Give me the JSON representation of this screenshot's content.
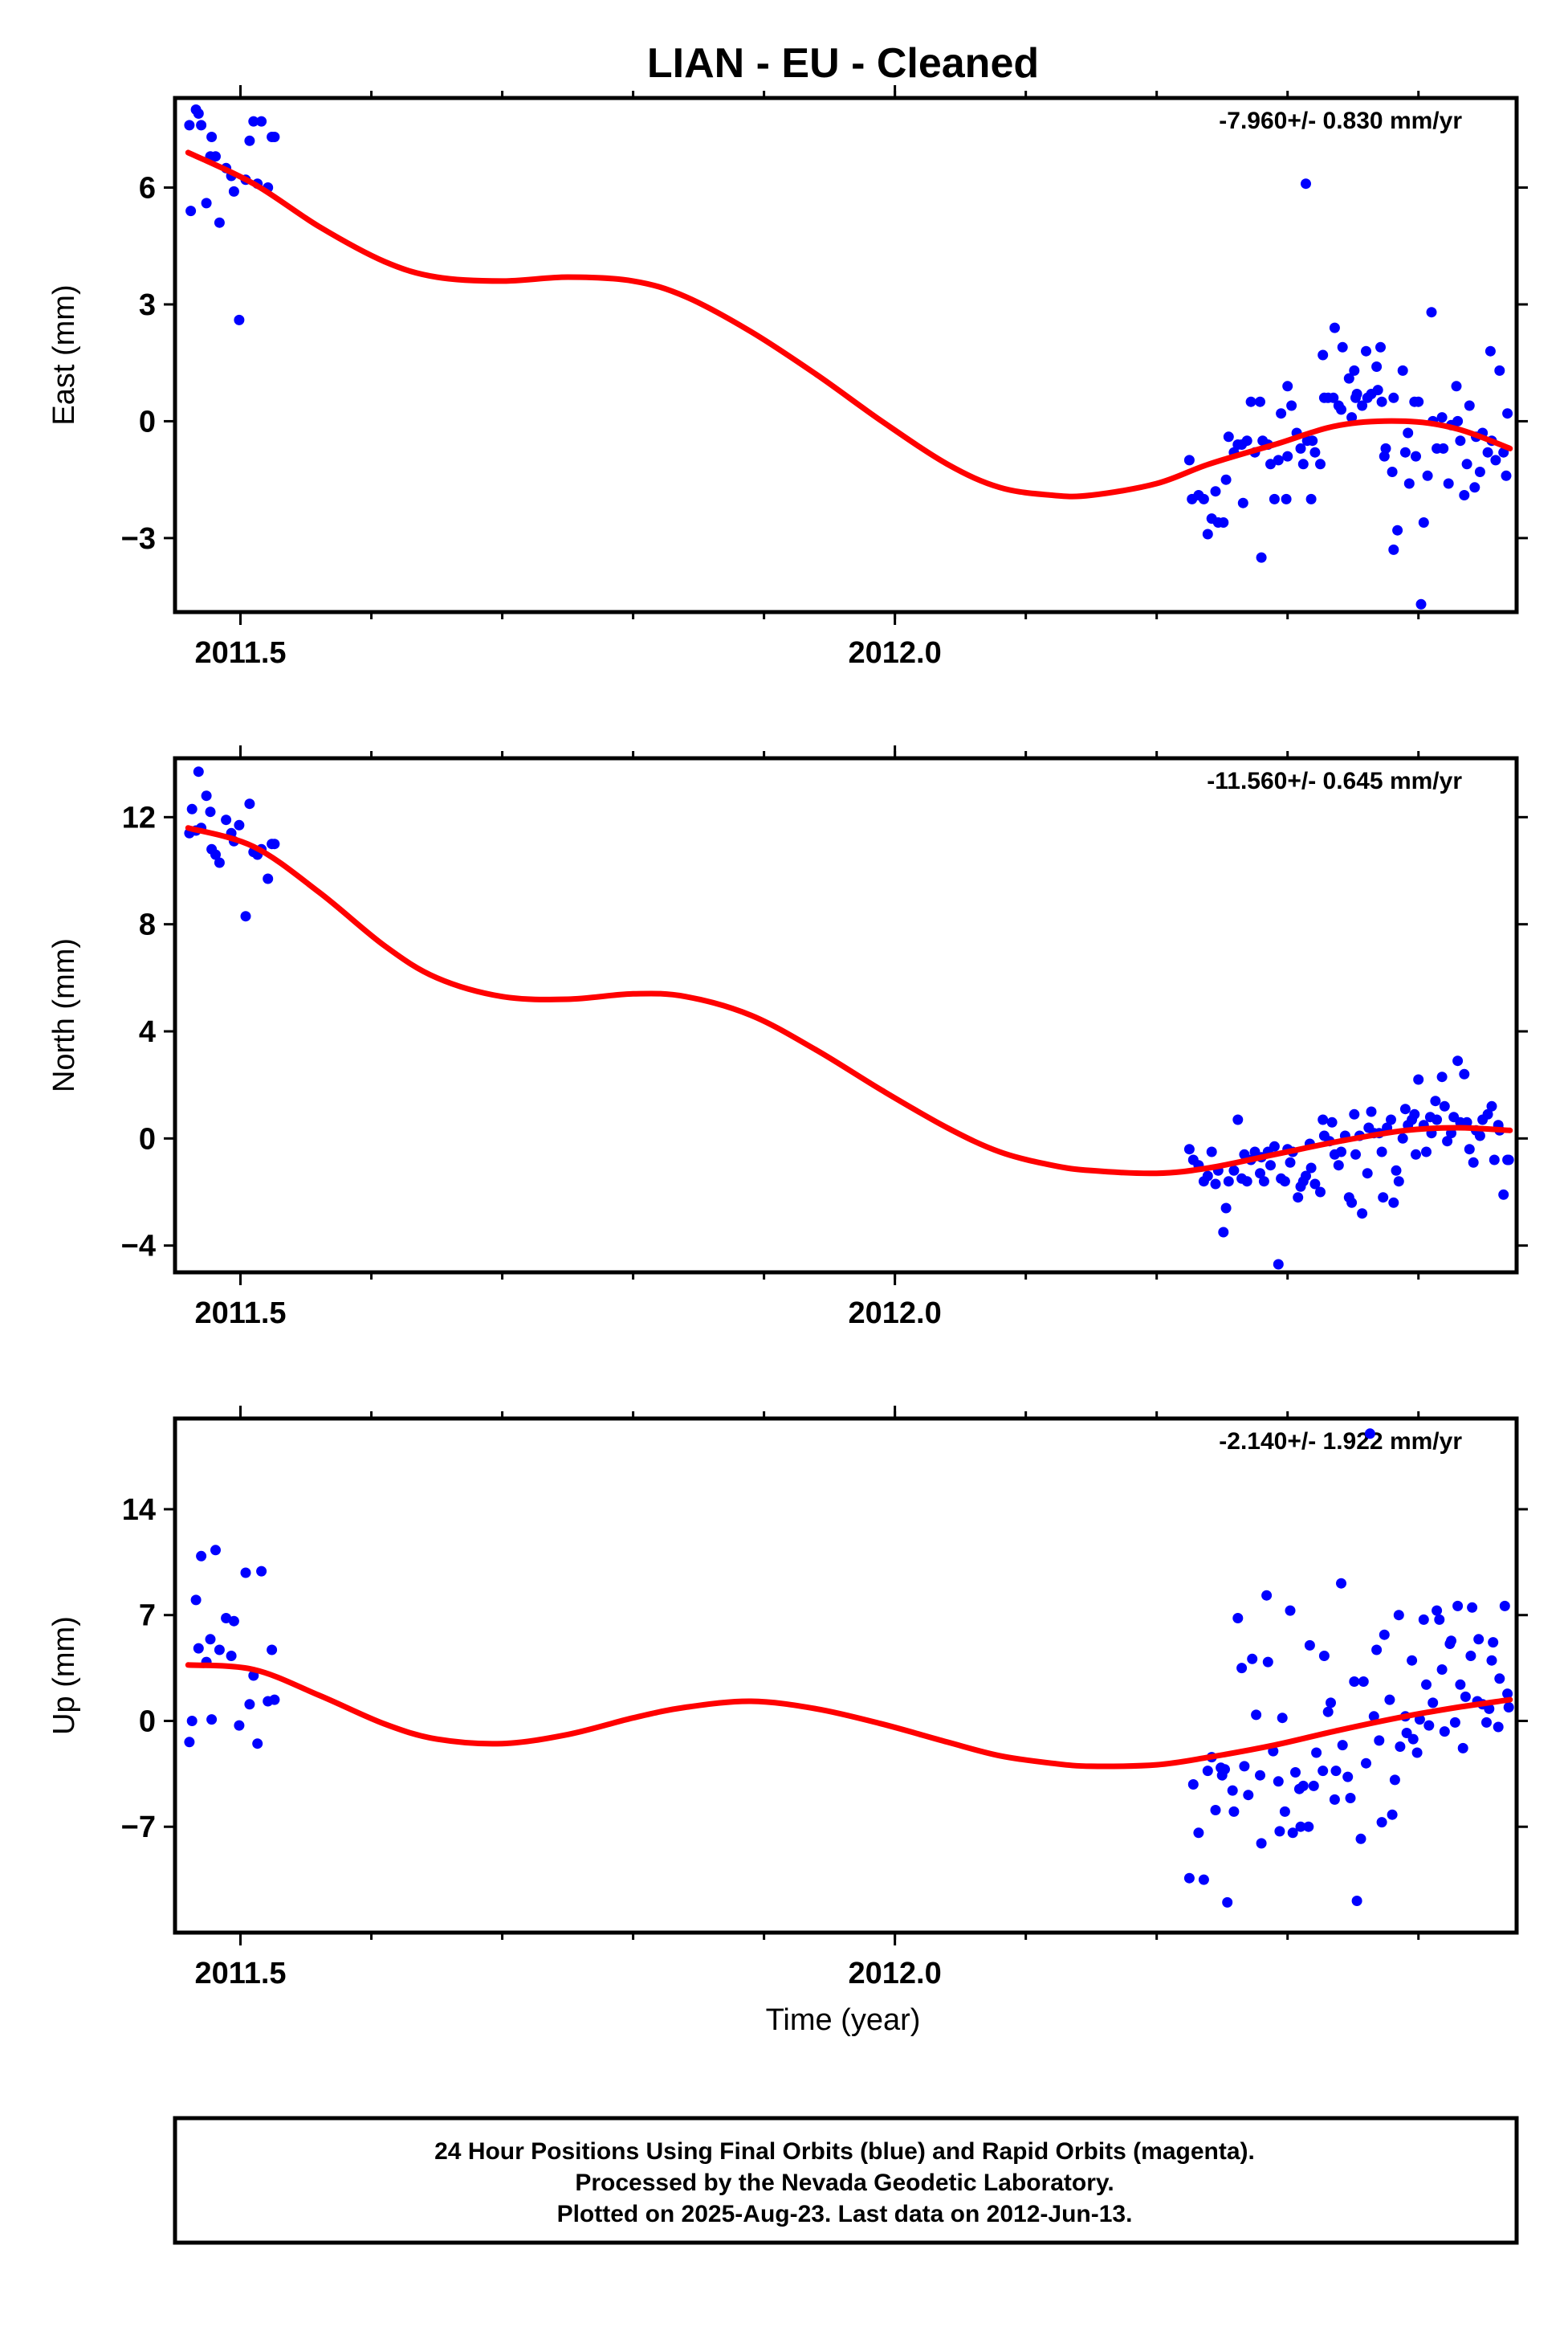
{
  "title": "LIAN  - EU - Cleaned",
  "x_axis_label": "Time (year)",
  "footer": {
    "line1": "24 Hour Positions Using Final Orbits (blue) and Rapid Orbits (magenta).",
    "line2": "Processed by the Nevada Geodetic Laboratory.",
    "line3": "Plotted on 2025-Aug-23. Last data on 2012-Jun-13."
  },
  "colors": {
    "points": "#0000ff",
    "fit": "#ff0000",
    "axes": "#000000"
  },
  "chart_data": [
    {
      "type": "scatter",
      "ylabel": "East (mm)",
      "rate_label": "-7.960+/- 0.830 mm/yr",
      "xlim": [
        2011.45,
        2012.475
      ],
      "ylim": [
        -4.9,
        8.3
      ],
      "x_ticks": [
        2011.5,
        2012.0
      ],
      "x_minor": 0.1,
      "y_ticks": [
        -3,
        0,
        3,
        6
      ],
      "grid": false,
      "series": [
        {
          "style": "points",
          "x": [
            2011.461,
            2011.462,
            2011.466,
            2011.468,
            2011.47,
            2011.474,
            2011.477,
            2011.478,
            2011.481,
            2011.484,
            2011.489,
            2011.493,
            2011.495,
            2011.499,
            2011.504,
            2011.507,
            2011.51,
            2011.513,
            2011.516,
            2011.521,
            2011.524,
            2011.526
          ],
          "y": [
            7.6,
            5.4,
            8.0,
            7.9,
            7.6,
            5.6,
            6.8,
            7.3,
            6.8,
            5.1,
            6.5,
            6.3,
            5.9,
            2.6,
            6.2,
            7.2,
            7.7,
            6.1,
            7.7,
            6.0,
            7.3,
            7.3
          ]
        },
        {
          "style": "points",
          "x": [
            2012.225,
            2012.227,
            2012.232,
            2012.236,
            2012.239,
            2012.242,
            2012.245,
            2012.247,
            2012.251,
            2012.253,
            2012.255,
            2012.259,
            2012.262,
            2012.265,
            2012.266,
            2012.269,
            2012.272,
            2012.275,
            2012.279,
            2012.28,
            2012.281,
            2012.285,
            2012.287,
            2012.29,
            2012.293,
            2012.295,
            2012.299,
            2012.3,
            2012.3,
            2012.303,
            2012.307,
            2012.31,
            2012.312,
            2012.314,
            2012.315,
            2012.318,
            2012.319,
            2012.321,
            2012.325,
            2012.327,
            2012.328,
            2012.331,
            2012.335,
            2012.336,
            2012.339,
            2012.341,
            2012.342,
            2012.347,
            2012.349,
            2012.351,
            2012.352,
            2012.353,
            2012.357,
            2012.36,
            2012.361,
            2012.364,
            2012.368,
            2012.369,
            2012.371,
            2012.372,
            2012.374,
            2012.375,
            2012.38,
            2012.381,
            2012.381,
            2012.384,
            2012.388,
            2012.39,
            2012.392,
            2012.393,
            2012.397,
            2012.398,
            2012.4,
            2012.402,
            2012.404,
            2012.407,
            2012.41,
            2012.411,
            2012.414,
            2012.418,
            2012.419,
            2012.423,
            2012.425,
            2012.429,
            2012.43,
            2012.432,
            2012.435,
            2012.437,
            2012.439,
            2012.443,
            2012.444,
            2012.447,
            2012.449,
            2012.453,
            2012.455,
            2012.456,
            2012.459,
            2012.462,
            2012.465,
            2012.467,
            2012.468
          ],
          "y": [
            -1.0,
            -2.0,
            -1.9,
            -2.0,
            -2.9,
            -2.5,
            -1.8,
            -2.6,
            -2.6,
            -1.5,
            -0.4,
            -0.8,
            -0.6,
            -0.6,
            -2.1,
            -0.5,
            0.5,
            -0.8,
            0.5,
            -3.5,
            -0.5,
            -0.6,
            -1.1,
            -2.0,
            -1.0,
            0.2,
            -2.0,
            -0.9,
            0.9,
            0.4,
            -0.3,
            -0.7,
            -1.1,
            6.1,
            -0.5,
            -2.0,
            -0.5,
            -0.8,
            -1.1,
            1.7,
            0.6,
            0.6,
            0.6,
            2.4,
            0.4,
            0.3,
            1.9,
            1.1,
            0.1,
            1.3,
            0.6,
            0.7,
            0.4,
            1.8,
            0.6,
            0.7,
            1.4,
            0.8,
            1.9,
            0.5,
            -0.9,
            -0.7,
            -1.3,
            0.6,
            -3.3,
            -2.8,
            1.3,
            -0.8,
            -0.3,
            -1.6,
            0.5,
            -0.9,
            0.5,
            -4.7,
            -2.6,
            -1.4,
            2.8,
            0.0,
            -0.7,
            0.1,
            -0.7,
            -1.6,
            -0.1,
            0.9,
            0.0,
            -0.5,
            -1.9,
            -1.1,
            0.4,
            -1.7,
            -0.4,
            -1.3,
            -0.3,
            -0.8,
            1.8,
            -0.5,
            -1.0,
            1.3,
            -0.8,
            -1.4,
            0.2
          ]
        },
        {
          "style": "line",
          "x": [
            2011.46,
            2011.51,
            2011.56,
            2011.61,
            2011.65,
            2011.7,
            2011.75,
            2011.8,
            2011.84,
            2011.89,
            2011.94,
            2011.99,
            2012.04,
            2012.08,
            2012.12,
            2012.15,
            2012.2,
            2012.24,
            2012.29,
            2012.34,
            2012.39,
            2012.43,
            2012.47
          ],
          "y": [
            6.9,
            6.1,
            5.0,
            4.1,
            3.7,
            3.6,
            3.7,
            3.6,
            3.2,
            2.3,
            1.2,
            0.0,
            -1.1,
            -1.7,
            -1.9,
            -1.9,
            -1.6,
            -1.1,
            -0.6,
            -0.1,
            0.0,
            -0.2,
            -0.7
          ]
        }
      ]
    },
    {
      "type": "scatter",
      "ylabel": "North (mm)",
      "rate_label": "-11.560+/- 0.645 mm/yr",
      "xlim": [
        2011.45,
        2012.475
      ],
      "ylim": [
        -5.0,
        14.2
      ],
      "x_ticks": [
        2011.5,
        2012.0
      ],
      "x_minor": 0.1,
      "y_ticks": [
        -4,
        0,
        4,
        8,
        12
      ],
      "grid": false,
      "series": [
        {
          "style": "points",
          "x": [
            2011.461,
            2011.463,
            2011.466,
            2011.468,
            2011.47,
            2011.474,
            2011.477,
            2011.478,
            2011.481,
            2011.484,
            2011.489,
            2011.493,
            2011.495,
            2011.499,
            2011.504,
            2011.507,
            2011.51,
            2011.513,
            2011.516,
            2011.521,
            2011.524,
            2011.526
          ],
          "y": [
            11.4,
            12.3,
            11.5,
            13.7,
            11.6,
            12.8,
            12.2,
            10.8,
            10.6,
            10.3,
            11.9,
            11.4,
            11.1,
            11.7,
            8.3,
            12.5,
            10.7,
            10.6,
            10.8,
            9.7,
            11.0,
            11.0
          ]
        },
        {
          "style": "points",
          "x": [
            2012.225,
            2012.228,
            2012.232,
            2012.236,
            2012.239,
            2012.242,
            2012.245,
            2012.247,
            2012.251,
            2012.253,
            2012.255,
            2012.259,
            2012.262,
            2012.265,
            2012.267,
            2012.269,
            2012.272,
            2012.275,
            2012.279,
            2012.28,
            2012.282,
            2012.285,
            2012.287,
            2012.29,
            2012.293,
            2012.295,
            2012.298,
            2012.3,
            2012.302,
            2012.304,
            2012.308,
            2012.31,
            2012.312,
            2012.314,
            2012.317,
            2012.318,
            2012.321,
            2012.325,
            2012.327,
            2012.328,
            2012.332,
            2012.334,
            2012.336,
            2012.339,
            2012.341,
            2012.344,
            2012.347,
            2012.349,
            2012.351,
            2012.352,
            2012.355,
            2012.357,
            2012.361,
            2012.362,
            2012.364,
            2012.366,
            2012.37,
            2012.372,
            2012.373,
            2012.376,
            2012.379,
            2012.381,
            2012.383,
            2012.385,
            2012.388,
            2012.39,
            2012.392,
            2012.395,
            2012.397,
            2012.398,
            2012.4,
            2012.404,
            2012.406,
            2012.409,
            2012.41,
            2012.413,
            2012.414,
            2012.418,
            2012.42,
            2012.422,
            2012.425,
            2012.427,
            2012.43,
            2012.432,
            2012.435,
            2012.437,
            2012.439,
            2012.442,
            2012.444,
            2012.447,
            2012.449,
            2012.453,
            2012.456,
            2012.458,
            2012.461,
            2012.462,
            2012.465,
            2012.468,
            2012.469
          ],
          "y": [
            -0.4,
            -0.8,
            -1.0,
            -1.6,
            -1.4,
            -0.5,
            -1.7,
            -1.2,
            -3.5,
            -2.6,
            -1.6,
            -1.2,
            0.7,
            -1.5,
            -0.6,
            -1.6,
            -0.8,
            -0.5,
            -1.3,
            -0.7,
            -1.6,
            -0.5,
            -1.0,
            -0.3,
            -4.7,
            -1.5,
            -1.6,
            -0.4,
            -0.9,
            -0.5,
            -2.2,
            -1.8,
            -1.6,
            -1.4,
            -0.2,
            -1.1,
            -1.7,
            -2.0,
            0.7,
            0.1,
            -0.1,
            0.6,
            -0.6,
            -1.0,
            -0.5,
            0.1,
            -2.2,
            -2.4,
            0.9,
            -0.6,
            0.1,
            -2.8,
            -1.3,
            0.4,
            1.0,
            0.2,
            0.2,
            -0.5,
            -2.2,
            0.4,
            0.7,
            -2.4,
            -1.2,
            -1.6,
            0.0,
            1.1,
            0.5,
            0.7,
            0.9,
            -0.6,
            2.2,
            0.5,
            -0.5,
            0.8,
            0.2,
            1.4,
            0.7,
            2.3,
            1.2,
            -0.1,
            0.2,
            0.8,
            2.9,
            0.6,
            2.4,
            0.6,
            -0.4,
            -0.9,
            0.3,
            0.1,
            0.7,
            0.9,
            1.2,
            -0.8,
            0.5,
            0.3,
            -2.1,
            -0.8,
            -0.8
          ]
        },
        {
          "style": "line",
          "x": [
            2011.46,
            2011.51,
            2011.56,
            2011.61,
            2011.65,
            2011.7,
            2011.75,
            2011.8,
            2011.84,
            2011.89,
            2011.94,
            2011.99,
            2012.04,
            2012.08,
            2012.12,
            2012.15,
            2012.2,
            2012.24,
            2012.29,
            2012.34,
            2012.39,
            2012.43,
            2012.47
          ],
          "y": [
            11.6,
            10.9,
            9.2,
            7.2,
            6.0,
            5.3,
            5.2,
            5.4,
            5.3,
            4.6,
            3.3,
            1.8,
            0.4,
            -0.5,
            -1.0,
            -1.2,
            -1.3,
            -1.1,
            -0.6,
            -0.1,
            0.3,
            0.4,
            0.3
          ]
        }
      ]
    },
    {
      "type": "scatter",
      "ylabel": "Up (mm)",
      "rate_label": "-2.140+/- 1.922 mm/yr",
      "xlim": [
        2011.45,
        2012.475
      ],
      "ylim": [
        -14.0,
        20.0
      ],
      "x_ticks": [
        2011.5,
        2012.0
      ],
      "x_minor": 0.1,
      "y_ticks": [
        -7,
        0,
        7,
        14
      ],
      "grid": false,
      "series": [
        {
          "style": "points",
          "x": [
            2011.461,
            2011.463,
            2011.466,
            2011.468,
            2011.47,
            2011.474,
            2011.477,
            2011.478,
            2011.481,
            2011.484,
            2011.489,
            2011.493,
            2011.495,
            2011.499,
            2011.504,
            2011.507,
            2011.51,
            2011.513,
            2011.516,
            2011.521,
            2011.524,
            2011.526
          ],
          "y": [
            -1.4,
            0.0,
            8.0,
            4.8,
            10.9,
            3.9,
            5.4,
            0.1,
            11.3,
            4.7,
            6.8,
            4.3,
            6.6,
            -0.3,
            9.8,
            1.1,
            3.0,
            -1.5,
            9.9,
            1.3,
            4.7,
            1.4
          ]
        },
        {
          "style": "points",
          "x": [
            2012.225,
            2012.228,
            2012.232,
            2012.236,
            2012.239,
            2012.242,
            2012.245,
            2012.249,
            2012.25,
            2012.252,
            2012.254,
            2012.258,
            2012.259,
            2012.262,
            2012.265,
            2012.267,
            2012.27,
            2012.273,
            2012.276,
            2012.279,
            2012.28,
            2012.284,
            2012.285,
            2012.289,
            2012.293,
            2012.294,
            2012.296,
            2012.298,
            2012.302,
            2012.304,
            2012.306,
            2012.309,
            2012.31,
            2012.312,
            2012.316,
            2012.317,
            2012.32,
            2012.322,
            2012.327,
            2012.328,
            2012.331,
            2012.333,
            2012.336,
            2012.337,
            2012.341,
            2012.342,
            2012.346,
            2012.348,
            2012.351,
            2012.353,
            2012.356,
            2012.358,
            2012.36,
            2012.363,
            2012.366,
            2012.368,
            2012.37,
            2012.372,
            2012.374,
            2012.378,
            2012.38,
            2012.382,
            2012.385,
            2012.386,
            2012.39,
            2012.391,
            2012.395,
            2012.396,
            2012.399,
            2012.401,
            2012.404,
            2012.406,
            2012.408,
            2012.411,
            2012.414,
            2012.416,
            2012.418,
            2012.42,
            2012.424,
            2012.425,
            2012.428,
            2012.43,
            2012.432,
            2012.434,
            2012.436,
            2012.44,
            2012.441,
            2012.445,
            2012.446,
            2012.449,
            2012.452,
            2012.454,
            2012.456,
            2012.457,
            2012.461,
            2012.462,
            2012.466,
            2012.468,
            2012.469
          ],
          "y": [
            -10.4,
            -4.2,
            -7.4,
            -10.5,
            -3.3,
            -2.4,
            -5.9,
            -3.1,
            -3.6,
            -3.2,
            -12.0,
            -4.6,
            -6.0,
            6.8,
            3.5,
            -3.0,
            -4.9,
            4.1,
            0.4,
            -3.6,
            -8.1,
            8.3,
            3.9,
            -2.0,
            -4.0,
            -7.3,
            0.2,
            -6.0,
            7.3,
            -7.4,
            -3.4,
            -4.5,
            -7.0,
            -4.3,
            -7.0,
            5.0,
            -4.3,
            -2.1,
            -3.3,
            4.3,
            0.6,
            1.2,
            -5.2,
            -3.3,
            9.1,
            -1.6,
            -3.7,
            -5.1,
            2.6,
            -11.9,
            -7.8,
            2.6,
            -2.8,
            19.0,
            0.3,
            4.7,
            -1.3,
            -6.7,
            5.7,
            1.4,
            -6.2,
            -3.9,
            7.0,
            -1.7,
            0.3,
            -0.8,
            4.0,
            -1.2,
            -2.1,
            0.1,
            6.7,
            2.4,
            -0.3,
            1.2,
            7.3,
            6.7,
            3.4,
            -0.7,
            5.1,
            5.3,
            -0.1,
            7.6,
            2.4,
            -1.8,
            1.6,
            4.3,
            7.5,
            1.3,
            5.4,
            1.1,
            -0.1,
            0.8,
            4.0,
            5.2,
            -0.4,
            2.8,
            7.6,
            1.8,
            0.9
          ]
        },
        {
          "style": "line",
          "x": [
            2011.46,
            2011.51,
            2011.56,
            2011.61,
            2011.65,
            2011.7,
            2011.75,
            2011.8,
            2011.84,
            2011.89,
            2011.94,
            2011.99,
            2012.04,
            2012.08,
            2012.12,
            2012.15,
            2012.2,
            2012.24,
            2012.29,
            2012.34,
            2012.39,
            2012.43,
            2012.47
          ],
          "y": [
            3.7,
            3.4,
            1.7,
            -0.2,
            -1.2,
            -1.5,
            -0.9,
            0.2,
            0.9,
            1.3,
            0.8,
            -0.2,
            -1.4,
            -2.3,
            -2.8,
            -3.0,
            -2.9,
            -2.4,
            -1.6,
            -0.6,
            0.3,
            0.9,
            1.4
          ]
        }
      ]
    }
  ]
}
